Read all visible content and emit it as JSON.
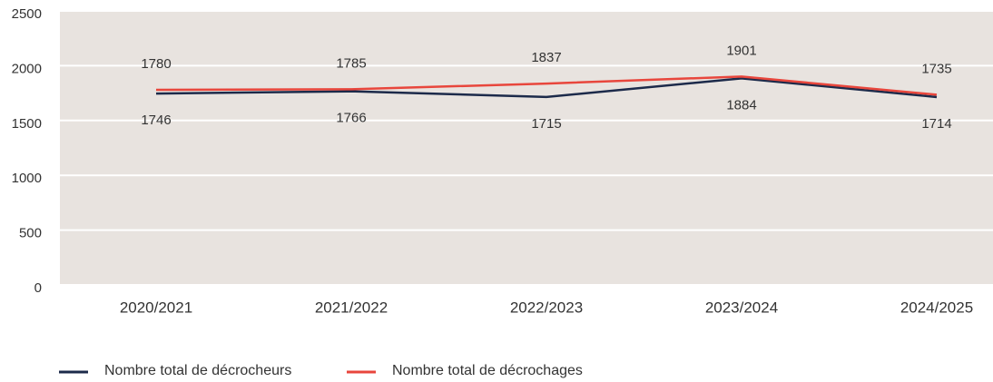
{
  "chart_data": {
    "type": "line",
    "categories": [
      "2020/2021",
      "2021/2022",
      "2022/2023",
      "2023/2024",
      "2024/2025"
    ],
    "series": [
      {
        "name": "Nombre total de décrocheurs",
        "color": "#1c2a4a",
        "values": [
          1746,
          1766,
          1715,
          1884,
          1714
        ]
      },
      {
        "name": "Nombre total de décrochages",
        "color": "#e8463c",
        "values": [
          1780,
          1785,
          1837,
          1901,
          1735
        ]
      }
    ],
    "ylim": [
      0,
      2500
    ],
    "yticks": [
      0,
      500,
      1000,
      1500,
      2000,
      2500
    ],
    "grid": true,
    "legend": "bottom"
  }
}
